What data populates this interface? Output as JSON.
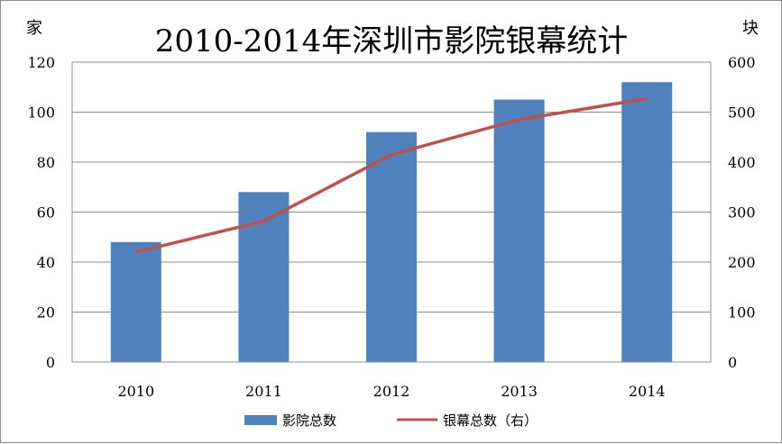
{
  "chart_data": {
    "type": "bar",
    "title": "2010-2014年深圳市影院银幕统计",
    "left_unit": "家",
    "right_unit": "块",
    "categories": [
      "2010",
      "2011",
      "2012",
      "2013",
      "2014"
    ],
    "series": [
      {
        "name": "影院总数",
        "type": "bar",
        "axis": "left",
        "color": "#4f81bd",
        "values": [
          48,
          68,
          92,
          105,
          112
        ]
      },
      {
        "name": "银幕总数（右）",
        "type": "line",
        "axis": "right",
        "color": "#c0504d",
        "values": [
          220,
          282,
          415,
          485,
          527
        ]
      }
    ],
    "ylim_left": [
      0,
      120
    ],
    "ylim_right": [
      0,
      600
    ],
    "left_ticks": [
      "0",
      "20",
      "40",
      "60",
      "80",
      "100",
      "120"
    ],
    "right_ticks": [
      "0",
      "100",
      "200",
      "300",
      "400",
      "500",
      "600"
    ],
    "grid": true,
    "legend_position": "bottom"
  }
}
